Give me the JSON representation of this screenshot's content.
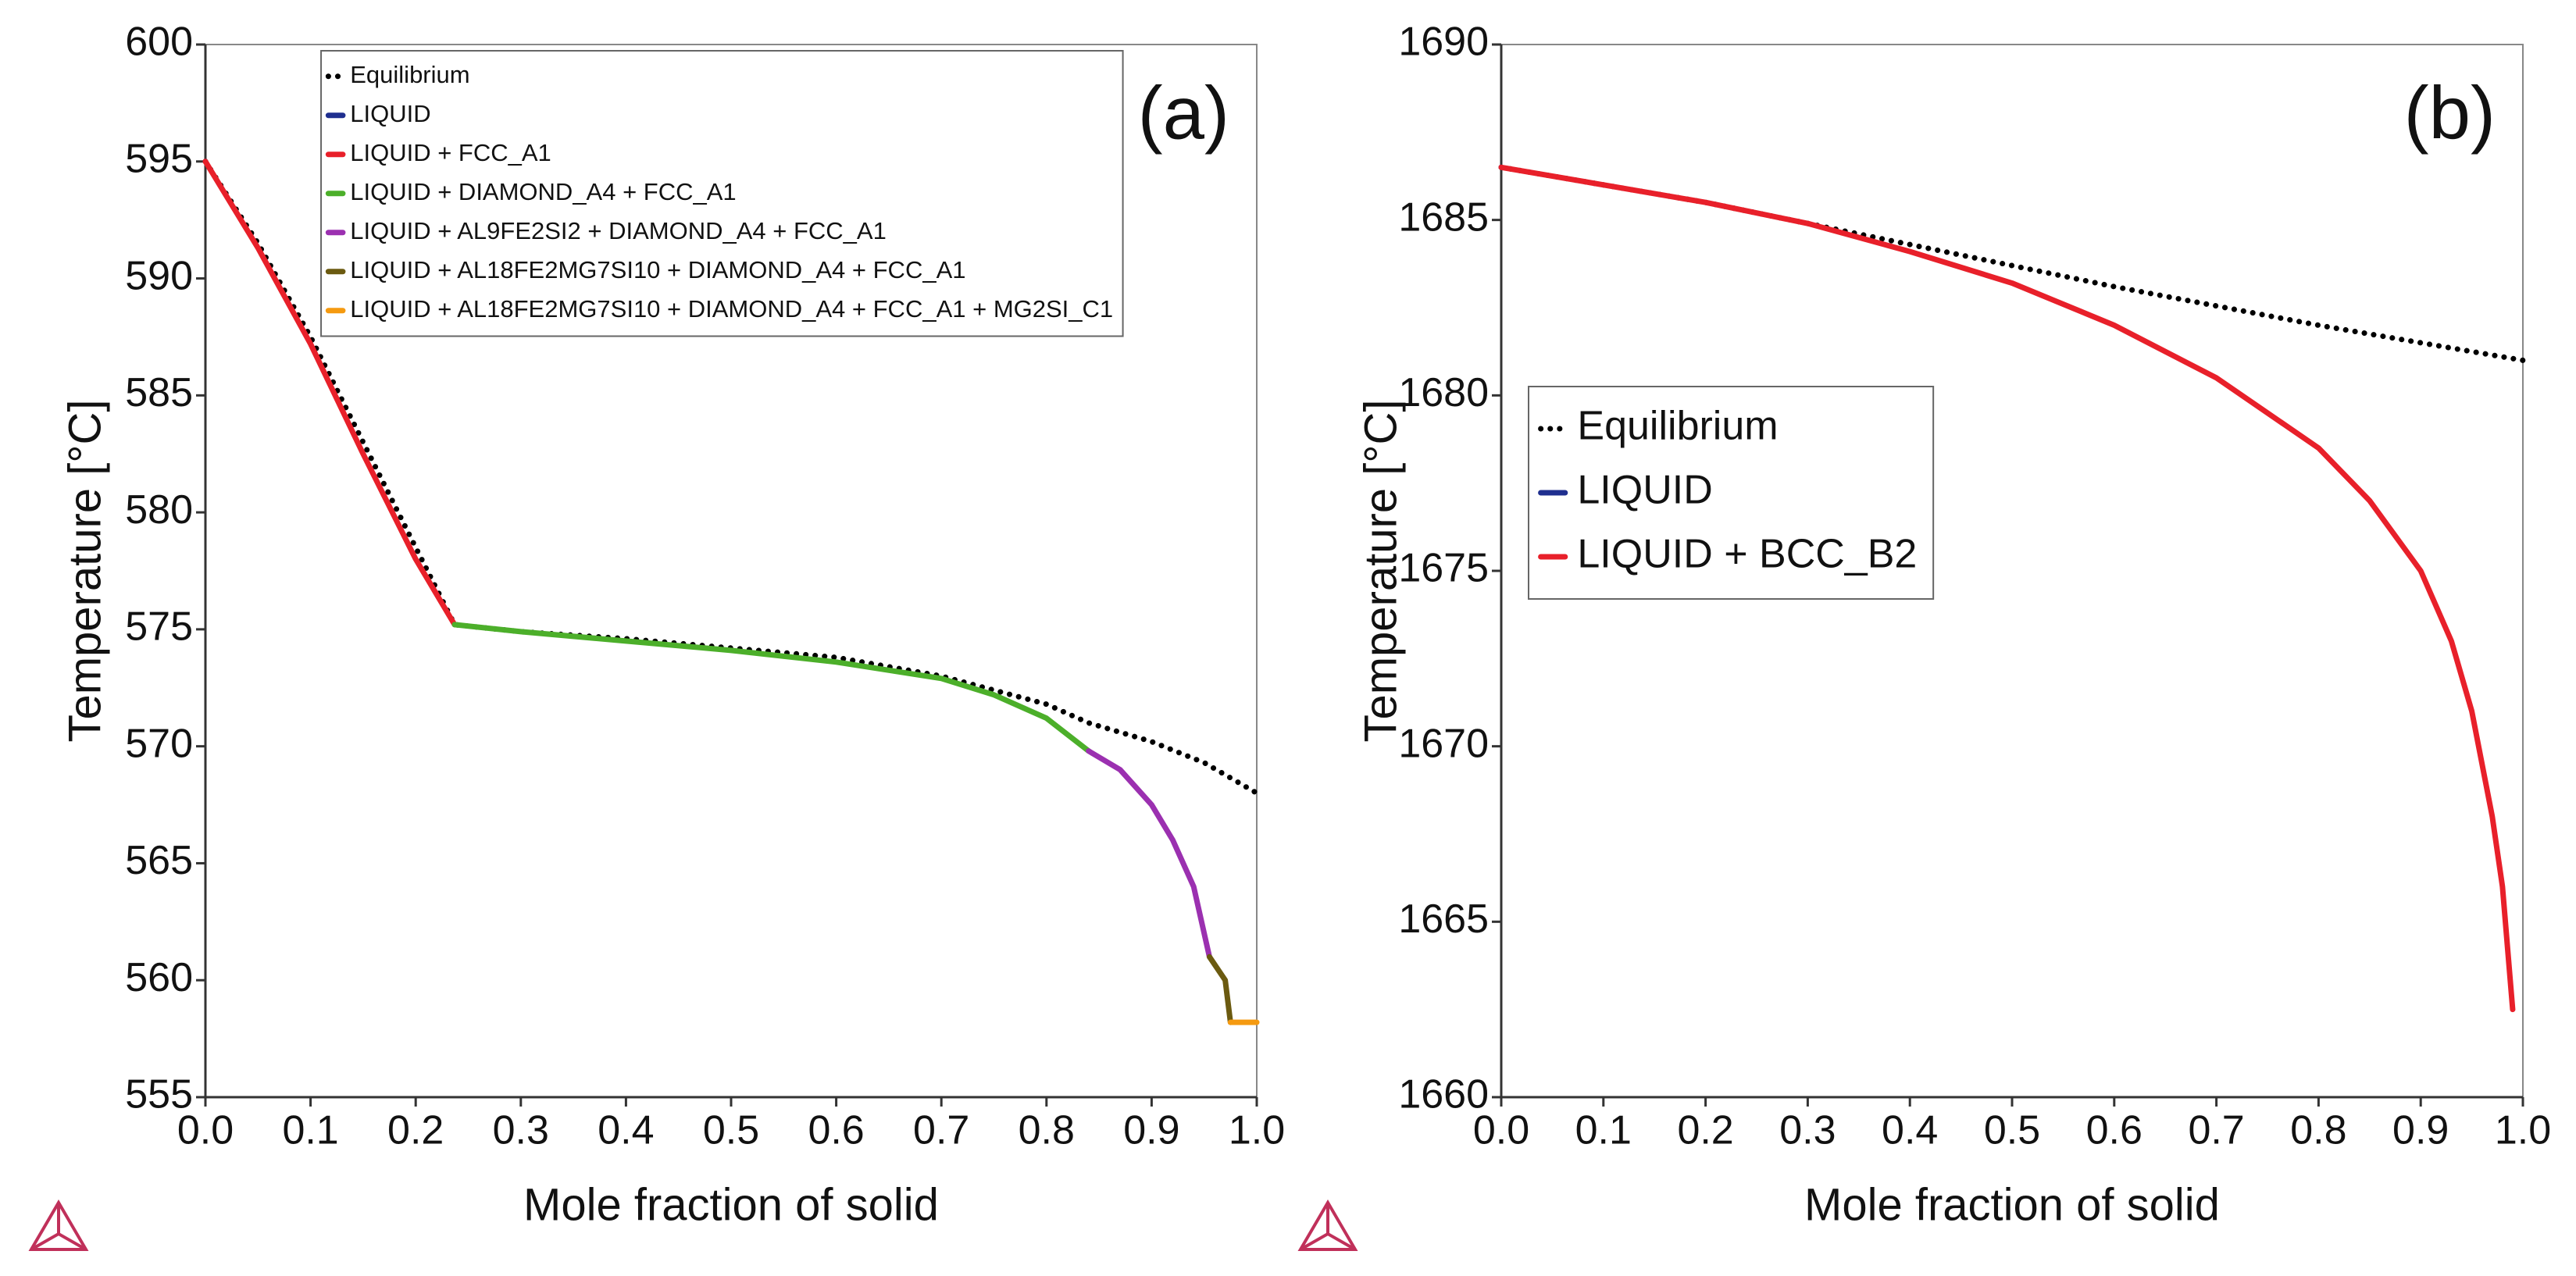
{
  "chart_data": [
    {
      "type": "line",
      "annotation": "(a)",
      "xlabel": "Mole fraction of solid",
      "ylabel": "Temperature [°C]",
      "xlim": [
        0,
        1
      ],
      "ylim": [
        555,
        600
      ],
      "xticks": [
        {
          "value": 0,
          "label": "0.0"
        },
        0.1,
        0.2,
        0.3,
        0.4,
        0.5,
        0.6,
        0.7,
        0.8,
        0.9,
        {
          "value": 1,
          "label": "1.0"
        }
      ],
      "yticks": [
        555,
        560,
        565,
        570,
        575,
        580,
        585,
        590,
        595,
        600
      ],
      "legend": "upper center",
      "series": [
        {
          "name": "Equilibrium",
          "color": "#000000",
          "dashed": true,
          "x": [
            0,
            0.05,
            0.1,
            0.15,
            0.2,
            0.237,
            0.3,
            0.4,
            0.5,
            0.6,
            0.7,
            0.8,
            0.84,
            0.9,
            0.95,
            1.0
          ],
          "values": [
            595,
            591.5,
            587.5,
            583,
            578.5,
            575.2,
            574.9,
            574.6,
            574.2,
            573.8,
            573,
            571.8,
            571,
            570.2,
            569.3,
            568
          ]
        },
        {
          "name": "LIQUID",
          "color": "#1f2f8f",
          "x": [
            0
          ],
          "values": [
            595
          ]
        },
        {
          "name": "LIQUID + FCC_A1",
          "color": "#e8202a",
          "x": [
            0,
            0.05,
            0.1,
            0.15,
            0.2,
            0.237
          ],
          "values": [
            595,
            591.3,
            587.2,
            582.5,
            578,
            575.2
          ]
        },
        {
          "name": "LIQUID + DIAMOND_A4 + FCC_A1",
          "color": "#4caf2a",
          "x": [
            0.237,
            0.3,
            0.4,
            0.5,
            0.6,
            0.7,
            0.75,
            0.8,
            0.84
          ],
          "values": [
            575.2,
            574.9,
            574.5,
            574.1,
            573.6,
            572.9,
            572.2,
            571.2,
            569.8
          ]
        },
        {
          "name": "LIQUID + AL9FE2SI2 + DIAMOND_A4 + FCC_A1",
          "color": "#9b30b0",
          "x": [
            0.84,
            0.87,
            0.9,
            0.92,
            0.94,
            0.955
          ],
          "values": [
            569.8,
            569,
            567.5,
            566,
            564,
            561
          ]
        },
        {
          "name": "LIQUID + AL18FE2MG7SI10 + DIAMOND_A4 + FCC_A1",
          "color": "#6b5a10",
          "x": [
            0.955,
            0.97,
            0.975
          ],
          "values": [
            561,
            560,
            558.2
          ]
        },
        {
          "name": "LIQUID + AL18FE2MG7SI10 + DIAMOND_A4 + FCC_A1 + MG2SI_C1",
          "color": "#f59a10",
          "x": [
            0.975,
            1.0
          ],
          "values": [
            558.2,
            558.2
          ]
        }
      ]
    },
    {
      "type": "line",
      "annotation": "(b)",
      "xlabel": "Mole fraction of solid",
      "ylabel": "Temperature [°C]",
      "xlim": [
        0,
        1
      ],
      "ylim": [
        1660,
        1690
      ],
      "xticks": [
        {
          "value": 0,
          "label": "0.0"
        },
        0.1,
        0.2,
        0.3,
        0.4,
        0.5,
        0.6,
        0.7,
        0.8,
        0.9,
        {
          "value": 1,
          "label": "1.0"
        }
      ],
      "yticks": [
        1660,
        1665,
        1670,
        1675,
        1680,
        1685,
        1690
      ],
      "legend": "center left",
      "series": [
        {
          "name": "Equilibrium",
          "color": "#000000",
          "dashed": true,
          "x": [
            0,
            0.2,
            0.4,
            0.6,
            0.8,
            1.0
          ],
          "values": [
            1686.5,
            1685.5,
            1684.3,
            1683.1,
            1682,
            1681
          ]
        },
        {
          "name": "LIQUID",
          "color": "#1f2f8f",
          "x": [
            0
          ],
          "values": [
            1686.5
          ]
        },
        {
          "name": "LIQUID + BCC_B2",
          "color": "#e8202a",
          "x": [
            0,
            0.2,
            0.3,
            0.4,
            0.5,
            0.6,
            0.7,
            0.8,
            0.85,
            0.9,
            0.93,
            0.95,
            0.97,
            0.98,
            0.99
          ],
          "values": [
            1686.5,
            1685.5,
            1684.9,
            1684.1,
            1683.2,
            1682,
            1680.5,
            1678.5,
            1677,
            1675,
            1673,
            1671,
            1668,
            1666,
            1662.5
          ]
        }
      ]
    }
  ]
}
